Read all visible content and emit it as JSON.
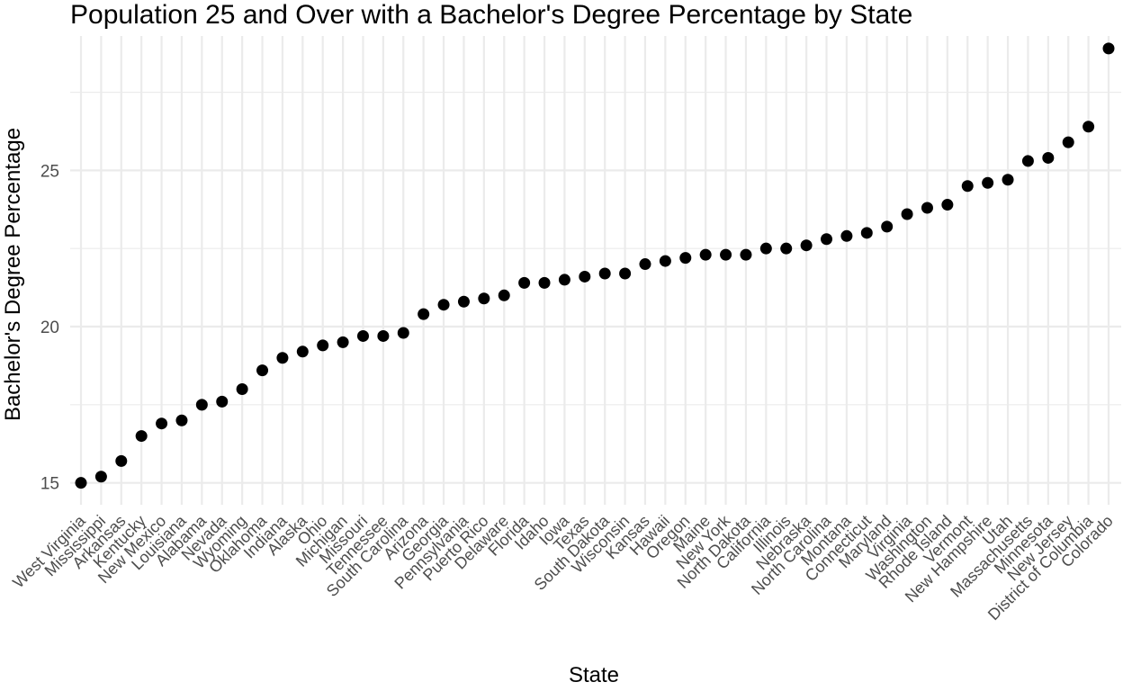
{
  "chart_data": {
    "type": "scatter",
    "title": "Population 25 and Over with a Bachelor's Degree Percentage by State",
    "xlabel": "State",
    "ylabel": "Bachelor's Degree Percentage",
    "ylim": [
      14.3,
      29.3
    ],
    "y_ticks": [
      15,
      20,
      25
    ],
    "y_tick_labels": [
      "15",
      "20",
      "25"
    ],
    "grid": true,
    "categories": [
      "West Virginia",
      "Mississippi",
      "Arkansas",
      "Kentucky",
      "New Mexico",
      "Louisiana",
      "Alabama",
      "Nevada",
      "Wyoming",
      "Oklahoma",
      "Indiana",
      "Alaska",
      "Ohio",
      "Michigan",
      "Missouri",
      "Tennessee",
      "South Carolina",
      "Arizona",
      "Georgia",
      "Pennsylvania",
      "Puerto Rico",
      "Delaware",
      "Florida",
      "Idaho",
      "Iowa",
      "Texas",
      "South Dakota",
      "Wisconsin",
      "Kansas",
      "Hawaii",
      "Oregon",
      "Maine",
      "New York",
      "North Dakota",
      "California",
      "Illinois",
      "Nebraska",
      "North Carolina",
      "Montana",
      "Connecticut",
      "Maryland",
      "Virginia",
      "Washington",
      "Rhode Island",
      "Vermont",
      "New Hampshire",
      "Utah",
      "Massachusetts",
      "Minnesota",
      "New Jersey",
      "District of Columbia",
      "Colorado"
    ],
    "values": [
      15.0,
      15.2,
      15.7,
      16.5,
      16.9,
      17.0,
      17.5,
      17.6,
      18.0,
      18.6,
      19.0,
      19.2,
      19.4,
      19.5,
      19.7,
      19.7,
      19.8,
      20.4,
      20.7,
      20.8,
      20.9,
      21.0,
      21.4,
      21.4,
      21.5,
      21.6,
      21.7,
      21.7,
      22.0,
      22.1,
      22.2,
      22.3,
      22.3,
      22.3,
      22.5,
      22.5,
      22.6,
      22.8,
      22.9,
      23.0,
      23.2,
      23.6,
      23.8,
      23.9,
      24.5,
      24.6,
      24.7,
      25.3,
      25.4,
      25.9,
      26.4,
      28.9
    ],
    "point_color": "#000000"
  }
}
